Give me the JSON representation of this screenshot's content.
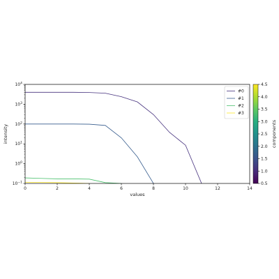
{
  "chart_data": {
    "type": "line",
    "xlabel": "values",
    "ylabel": "intensity",
    "xlim": [
      0,
      14
    ],
    "ylim": [
      0.1,
      10000
    ],
    "yscale": "log",
    "x_ticks": [
      "0",
      "2",
      "4",
      "6",
      "8",
      "10",
      "12",
      "14"
    ],
    "y_ticks": [
      {
        "value": 10000,
        "base": "10",
        "exp": "4"
      },
      {
        "value": 1000,
        "base": "10",
        "exp": "3"
      },
      {
        "value": 100,
        "base": "10",
        "exp": "2"
      },
      {
        "value": 10,
        "base": "10",
        "exp": "1"
      },
      {
        "value": 1,
        "base": "10",
        "exp": "0"
      },
      {
        "value": 0.1,
        "base": "10",
        "exp": "−1"
      }
    ],
    "legend_position": "top-right",
    "series": [
      {
        "name": "#0",
        "color": "#46327e",
        "x": [
          0,
          1,
          2,
          3,
          4,
          5,
          6,
          7,
          8,
          9,
          10,
          11
        ],
        "y": [
          4000,
          4000,
          4000,
          4000,
          3900,
          3600,
          2400,
          1300,
          300,
          38,
          8.5,
          0.1
        ]
      },
      {
        "name": "#1",
        "color": "#365c8d",
        "x": [
          0,
          1,
          2,
          3,
          4,
          5,
          6,
          7,
          8
        ],
        "y": [
          100,
          100,
          100,
          100,
          98,
          85,
          20,
          2.2,
          0.1
        ]
      },
      {
        "name": "#2",
        "color": "#4ac16d",
        "x": [
          0,
          1,
          2,
          3,
          4,
          5,
          6
        ],
        "y": [
          0.19,
          0.18,
          0.17,
          0.17,
          0.165,
          0.11,
          0.1
        ]
      },
      {
        "name": "#3",
        "color": "#fde725",
        "x": [
          0,
          1,
          2,
          3,
          4
        ],
        "y": [
          0.115,
          0.112,
          0.11,
          0.105,
          0.1
        ]
      }
    ],
    "colorbar": {
      "label": "components",
      "range": [
        0.5,
        4.5
      ],
      "ticks": [
        "0.5",
        "1.0",
        "1.5",
        "2.0",
        "2.5",
        "3.0",
        "3.5",
        "4.0",
        "4.5"
      ],
      "colormap": [
        "#440154",
        "#472d7b",
        "#3b528b",
        "#2c728e",
        "#21918c",
        "#28ae80",
        "#5ec962",
        "#addc30",
        "#fde725"
      ]
    },
    "grid": false
  }
}
